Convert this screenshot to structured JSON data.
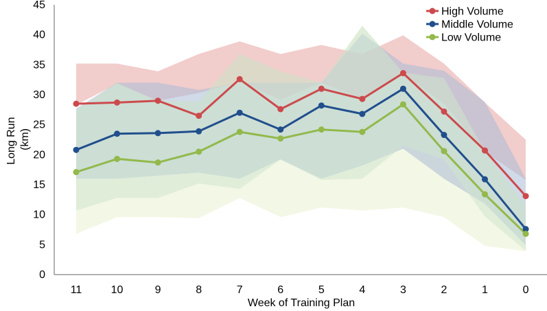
{
  "chart_data": {
    "type": "line",
    "title": "",
    "xlabel": "Week of Training Plan",
    "ylabel_lines": [
      "Long Run",
      "(km)"
    ],
    "categories": [
      "11",
      "10",
      "9",
      "8",
      "7",
      "6",
      "5",
      "4",
      "3",
      "2",
      "1",
      "0"
    ],
    "ylim": [
      0,
      45
    ],
    "yticks": [
      0,
      5,
      10,
      15,
      20,
      25,
      30,
      35,
      40,
      45
    ],
    "grid": false,
    "legend_position": "top-right",
    "series": [
      {
        "name": "High Volume",
        "color": "#cc4a4c",
        "band_color": "#e6a4a3",
        "values": [
          28.5,
          28.7,
          29.0,
          26.5,
          32.6,
          27.6,
          31.0,
          29.3,
          33.6,
          27.2,
          20.7,
          13.1
        ],
        "band_upper": [
          35.2,
          35.2,
          33.9,
          36.8,
          38.9,
          36.8,
          38.3,
          36.8,
          39.9,
          35.2,
          28.7,
          22.5
        ],
        "band_lower": [
          28.3,
          31.8,
          29.0,
          30.3,
          32.1,
          29.2,
          32.0,
          29.3,
          33.5,
          28.5,
          20.5,
          15.8
        ]
      },
      {
        "name": "Middle Volume",
        "color": "#204f8c",
        "band_color": "#a9bcd6",
        "values": [
          20.8,
          23.5,
          23.6,
          23.9,
          27.0,
          24.2,
          28.2,
          26.8,
          31.0,
          23.3,
          15.9,
          7.6
        ],
        "band_upper": [
          27.7,
          32.0,
          32.0,
          30.8,
          32.0,
          32.0,
          32.0,
          40.2,
          35.2,
          34.0,
          28.8,
          16.0
        ],
        "band_lower": [
          16.0,
          16.0,
          16.5,
          17.0,
          16.0,
          19.2,
          16.0,
          18.2,
          21.0,
          16.0,
          11.8,
          4.9
        ]
      },
      {
        "name": "Low Volume",
        "color": "#92b94b",
        "band_color": "#cfe6cf",
        "values": [
          17.1,
          19.3,
          18.7,
          20.5,
          23.8,
          22.7,
          24.2,
          23.8,
          28.4,
          20.6,
          13.4,
          6.8
        ],
        "band_upper": [
          27.4,
          32.0,
          29.0,
          28.9,
          36.8,
          33.9,
          32.0,
          41.5,
          33.7,
          32.8,
          20.6,
          11.5
        ],
        "band_lower": [
          10.7,
          12.8,
          12.8,
          15.2,
          14.3,
          19.2,
          15.8,
          16.0,
          21.5,
          19.2,
          9.7,
          4.0
        ]
      }
    ],
    "outer_band": {
      "color": "#eff4dc",
      "upper": [
        27.4,
        32.0,
        29.0,
        28.9,
        36.8,
        33.9,
        32.0,
        41.5,
        33.7,
        32.8,
        20.6,
        11.5
      ],
      "lower": [
        6.8,
        9.6,
        9.6,
        9.4,
        12.8,
        9.6,
        11.2,
        10.7,
        11.2,
        9.6,
        4.8,
        3.9
      ]
    }
  }
}
